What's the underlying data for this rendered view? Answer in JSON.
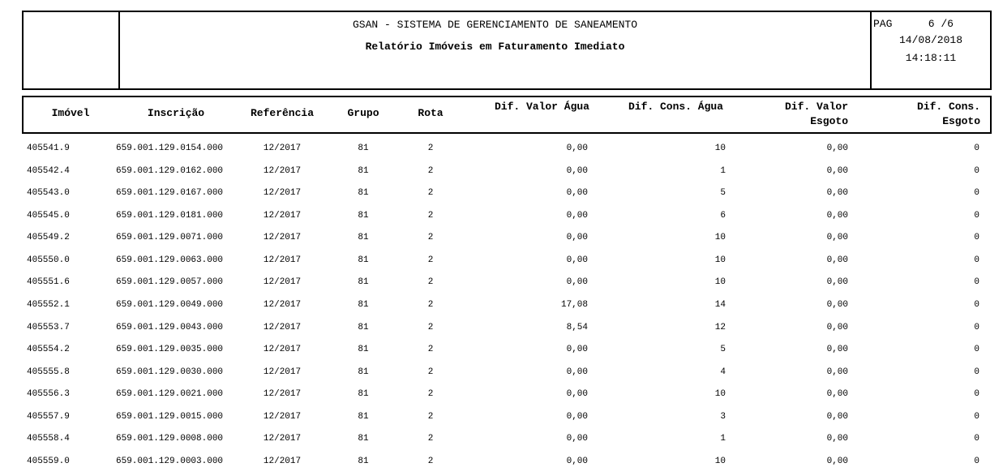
{
  "header": {
    "system": "GSAN - SISTEMA DE GERENCIAMENTO DE SANEAMENTO",
    "title": "Relatório Imóveis em Faturamento Imediato",
    "page_label": "PAG",
    "page": "6 /6",
    "date": "14/08/2018",
    "time": "14:18:11"
  },
  "table": {
    "columns": [
      [
        "Imóvel"
      ],
      [
        "Inscrição"
      ],
      [
        "Referência"
      ],
      [
        "Grupo"
      ],
      [
        "Rota"
      ],
      [
        "Dif. Valor Água"
      ],
      [
        "Dif. Cons. Água"
      ],
      [
        "Dif. Valor",
        "Esgoto"
      ],
      [
        "Dif. Cons.",
        "Esgoto"
      ]
    ],
    "rows": [
      [
        "405541.9",
        "659.001.129.0154.000",
        "12/2017",
        "81",
        "2",
        "0,00",
        "10",
        "0,00",
        "0"
      ],
      [
        "405542.4",
        "659.001.129.0162.000",
        "12/2017",
        "81",
        "2",
        "0,00",
        "1",
        "0,00",
        "0"
      ],
      [
        "405543.0",
        "659.001.129.0167.000",
        "12/2017",
        "81",
        "2",
        "0,00",
        "5",
        "0,00",
        "0"
      ],
      [
        "405545.0",
        "659.001.129.0181.000",
        "12/2017",
        "81",
        "2",
        "0,00",
        "6",
        "0,00",
        "0"
      ],
      [
        "405549.2",
        "659.001.129.0071.000",
        "12/2017",
        "81",
        "2",
        "0,00",
        "10",
        "0,00",
        "0"
      ],
      [
        "405550.0",
        "659.001.129.0063.000",
        "12/2017",
        "81",
        "2",
        "0,00",
        "10",
        "0,00",
        "0"
      ],
      [
        "405551.6",
        "659.001.129.0057.000",
        "12/2017",
        "81",
        "2",
        "0,00",
        "10",
        "0,00",
        "0"
      ],
      [
        "405552.1",
        "659.001.129.0049.000",
        "12/2017",
        "81",
        "2",
        "17,08",
        "14",
        "0,00",
        "0"
      ],
      [
        "405553.7",
        "659.001.129.0043.000",
        "12/2017",
        "81",
        "2",
        "8,54",
        "12",
        "0,00",
        "0"
      ],
      [
        "405554.2",
        "659.001.129.0035.000",
        "12/2017",
        "81",
        "2",
        "0,00",
        "5",
        "0,00",
        "0"
      ],
      [
        "405555.8",
        "659.001.129.0030.000",
        "12/2017",
        "81",
        "2",
        "0,00",
        "4",
        "0,00",
        "0"
      ],
      [
        "405556.3",
        "659.001.129.0021.000",
        "12/2017",
        "81",
        "2",
        "0,00",
        "10",
        "0,00",
        "0"
      ],
      [
        "405557.9",
        "659.001.129.0015.000",
        "12/2017",
        "81",
        "2",
        "0,00",
        "3",
        "0,00",
        "0"
      ],
      [
        "405558.4",
        "659.001.129.0008.000",
        "12/2017",
        "81",
        "2",
        "0,00",
        "1",
        "0,00",
        "0"
      ],
      [
        "405559.0",
        "659.001.129.0003.000",
        "12/2017",
        "81",
        "2",
        "0,00",
        "10",
        "0,00",
        "0"
      ]
    ]
  }
}
